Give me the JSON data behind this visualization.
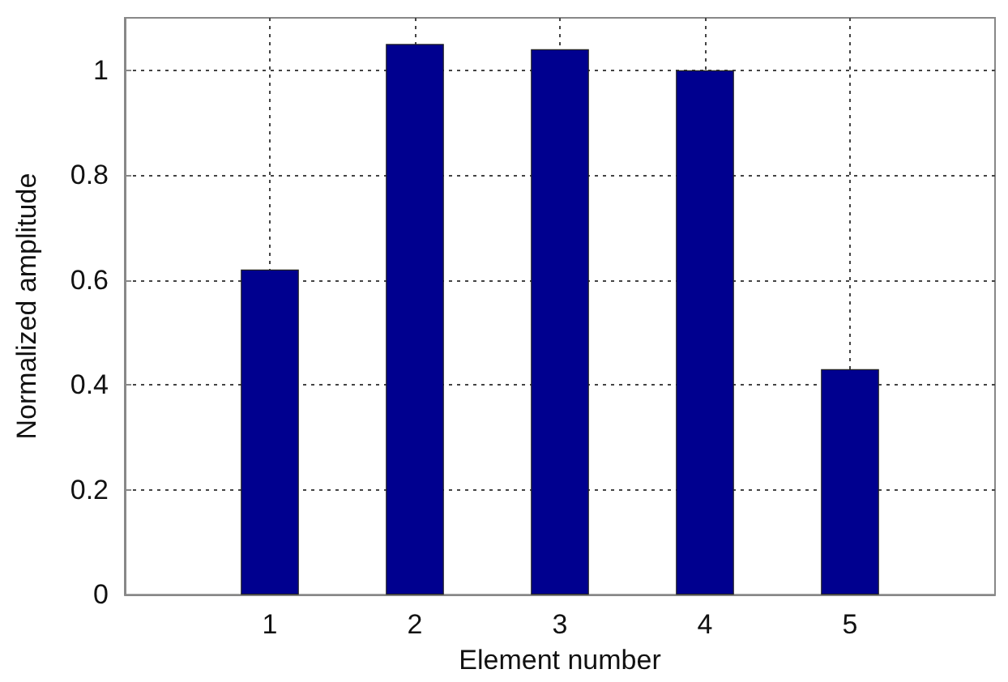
{
  "chart_data": {
    "type": "bar",
    "xlabel": "Element number",
    "ylabel": "Normalized amplitude",
    "x": [
      1,
      2,
      3,
      4,
      5
    ],
    "values": [
      0.62,
      1.05,
      1.04,
      1.0,
      0.43
    ],
    "color": "#00008f",
    "xlim": [
      0,
      6
    ],
    "xticks": [
      1,
      2,
      3,
      4,
      5
    ],
    "ylim": [
      0,
      1.1
    ],
    "yticks": [
      0,
      0.2,
      0.4,
      0.6,
      0.8,
      1
    ],
    "grid": true
  }
}
